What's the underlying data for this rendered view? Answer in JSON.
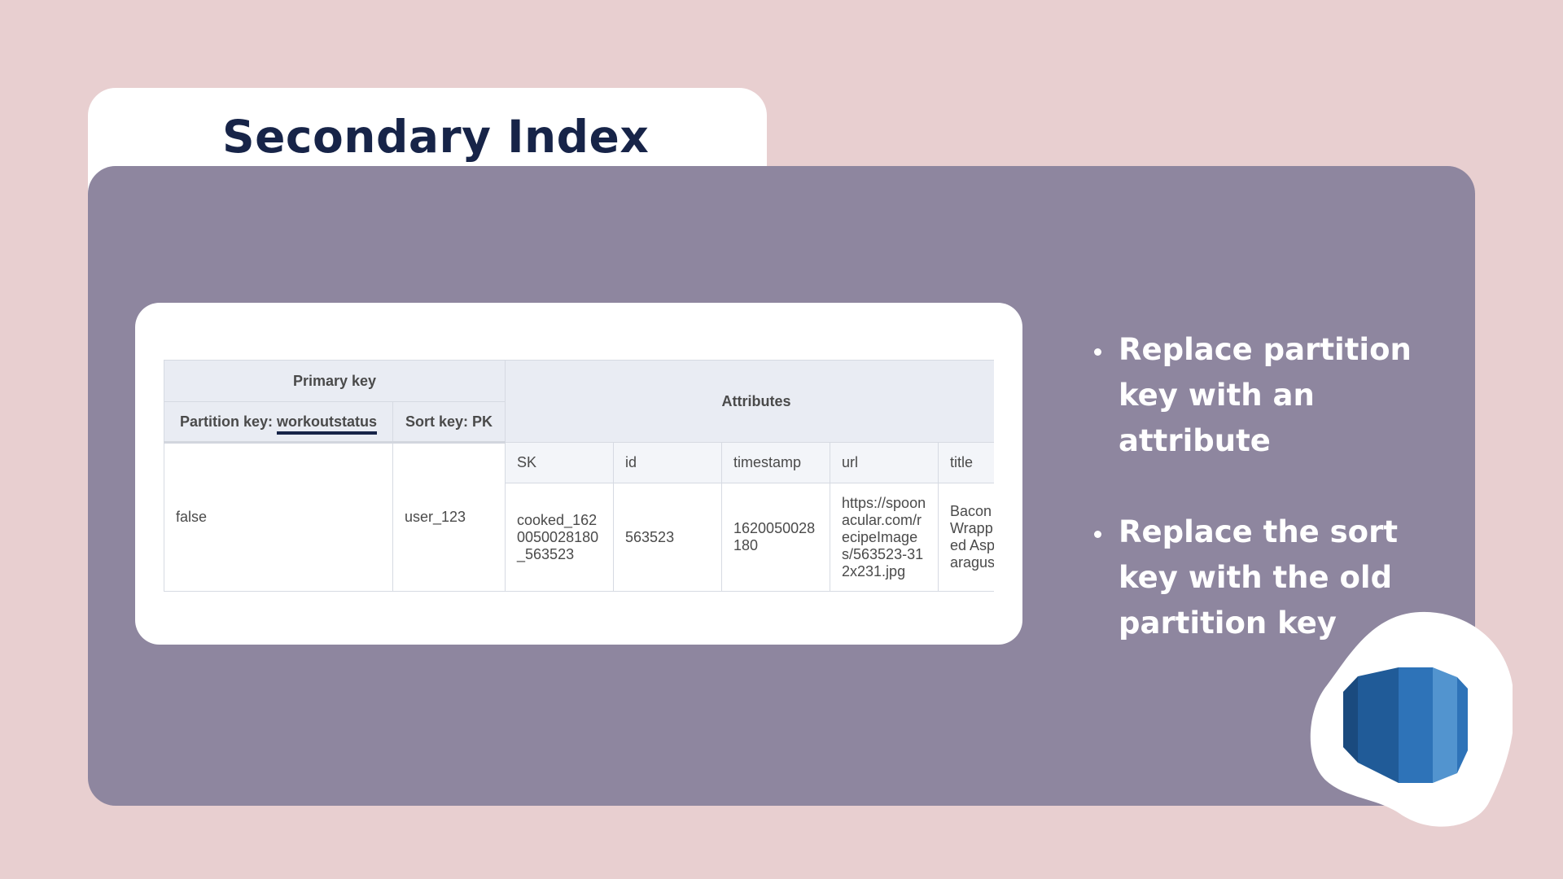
{
  "slide": {
    "title": "Secondary Index"
  },
  "table": {
    "primary_key_header": "Primary key",
    "partition_key_label": "Partition key: ",
    "partition_key_value": "workoutstatus",
    "sort_key_header": "Sort key: PK",
    "attributes_header": "Attributes",
    "attribute_columns": [
      "SK",
      "id",
      "timestamp",
      "url",
      "title"
    ],
    "row": {
      "partition_value": "false",
      "sort_value": "user_123",
      "SK": "cooked_1620050028180_563523",
      "id": "563523",
      "timestamp": "1620050028180",
      "url": "https://spoonacular.com/recipeImages/563523-312x231.jpg",
      "title": "Bacon Wrapped Asparagus"
    }
  },
  "bullets": [
    "Replace partition key with an attribute",
    "Replace the sort key with the old partition key"
  ],
  "logo": {
    "icon": "dynamodb-icon",
    "colors": {
      "dark": "#1a4a7e",
      "mid_dark": "#205b98",
      "mid": "#2e73b8",
      "light": "#5294cf"
    }
  }
}
